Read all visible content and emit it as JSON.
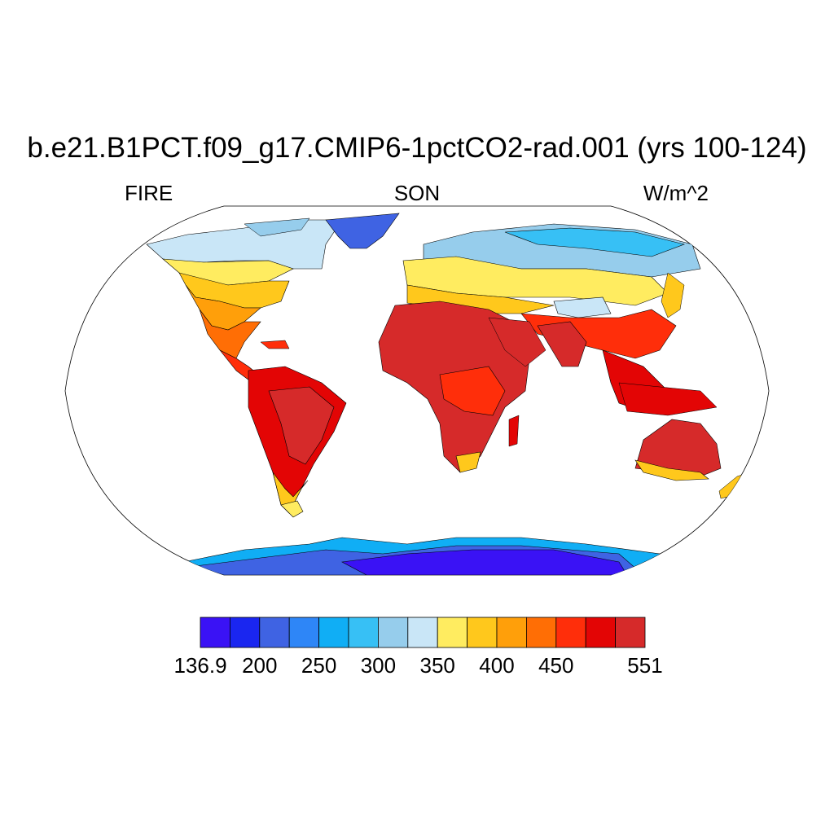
{
  "title": "b.e21.B1PCT.f09_g17.CMIP6-1pctCO2-rad.001 (yrs 100-124)",
  "left_label": "FIRE",
  "center_label": "SON",
  "right_label": "W/m^2",
  "colorbar": {
    "colors": [
      "#3a12f5",
      "#1a26f0",
      "#3f63e3",
      "#2e86f7",
      "#10aef5",
      "#37c0f5",
      "#96cdec",
      "#c9e6f7",
      "#ffec60",
      "#ffc81c",
      "#ff9f0a",
      "#ff6e05",
      "#ff2e0a",
      "#e30505",
      "#d62a2a"
    ],
    "tick_labels": [
      "136.9",
      "200",
      "250",
      "300",
      "350",
      "400",
      "450",
      "551"
    ],
    "tick_positions": [
      0,
      1,
      2,
      3,
      4,
      5,
      6,
      8
    ]
  },
  "chart_data": {
    "type": "heatmap",
    "projection": "Robinson",
    "variable": "FIRE",
    "season": "SON",
    "units": "W/m^2",
    "range": [
      136.9,
      551
    ],
    "levels": [
      136.9,
      200,
      225,
      250,
      275,
      300,
      325,
      350,
      375,
      400,
      425,
      450,
      475,
      500,
      525,
      551
    ]
  }
}
